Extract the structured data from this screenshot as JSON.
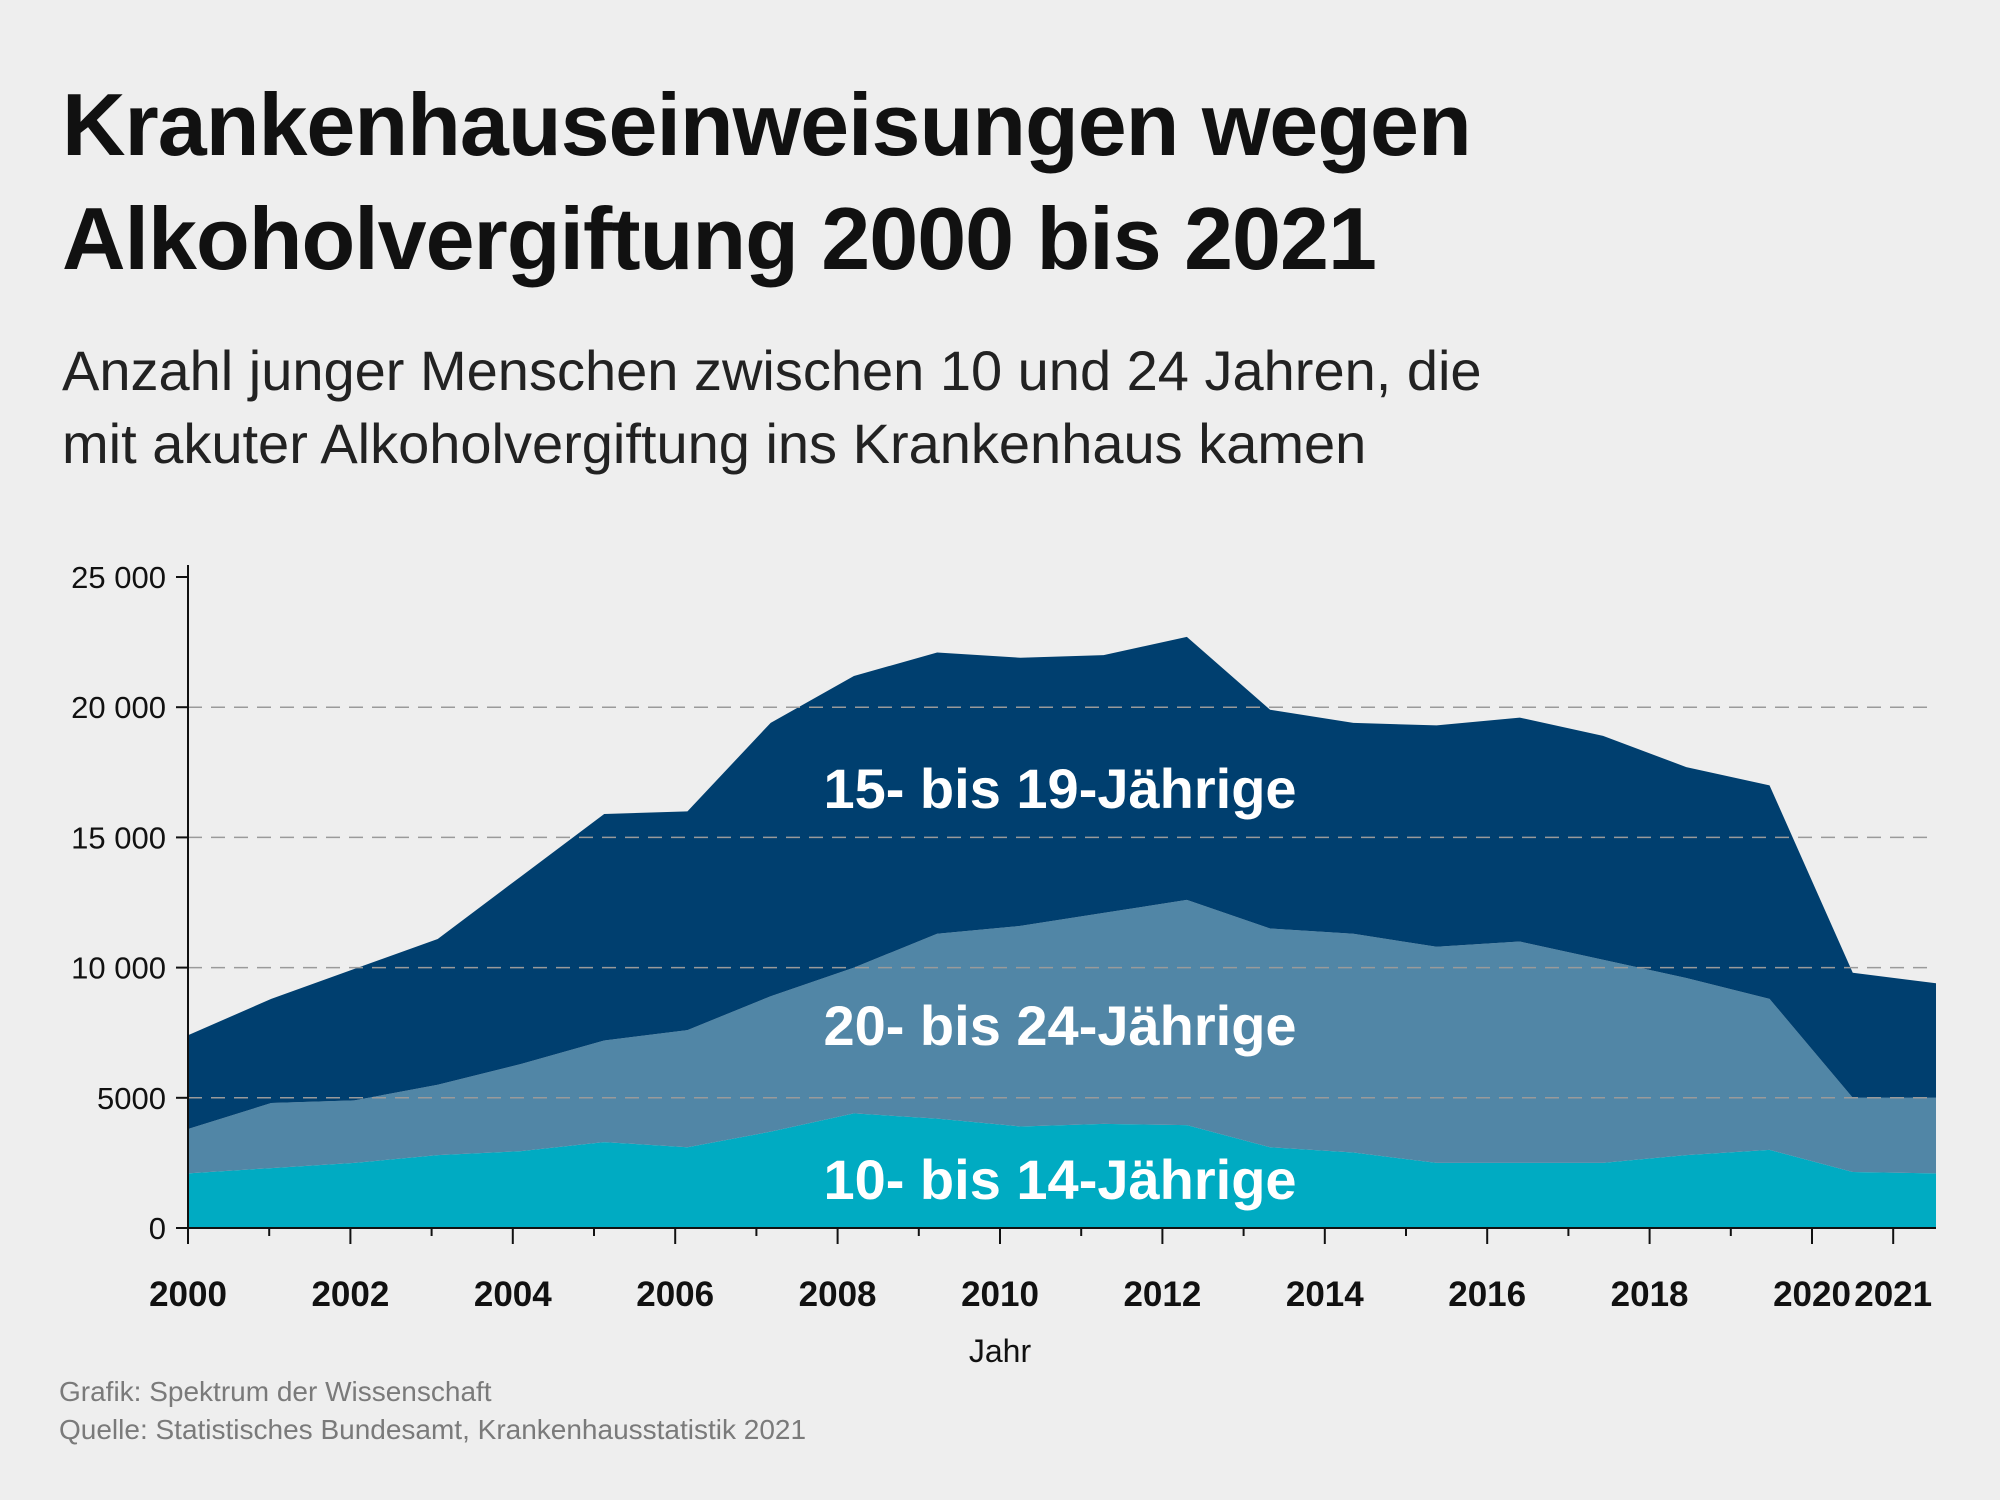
{
  "title_lines": [
    "Krankenhauseinweisungen wegen",
    "Alkoholvergiftung 2000 bis 2021"
  ],
  "subtitle_lines": [
    "Anzahl junger Menschen zwischen 10 und 24 Jahren, die",
    "mit akuter Alkoholvergiftung ins Krankenhaus kamen"
  ],
  "footer": {
    "credit": "Grafik: Spektrum der Wissenschaft",
    "source": "Quelle: Statistisches Bundesamt, Krankenhausstatistik 2021"
  },
  "chart_data": {
    "type": "area",
    "stacked": true,
    "title": "Krankenhauseinweisungen wegen Alkoholvergiftung 2000 bis 2021",
    "xlabel": "Jahr",
    "ylabel": "",
    "ylim": [
      0,
      25000
    ],
    "grid": "horizontal dashed",
    "legend": "inline labels",
    "x": [
      2000,
      2001,
      2002,
      2003,
      2004,
      2005,
      2006,
      2007,
      2008,
      2009,
      2010,
      2011,
      2012,
      2013,
      2014,
      2015,
      2016,
      2017,
      2018,
      2019,
      2020,
      2021
    ],
    "x_tick_labels": [
      "2000",
      "2002",
      "2004",
      "2006",
      "2008",
      "2010",
      "2012",
      "2014",
      "2016",
      "2018",
      "2020",
      "2021"
    ],
    "y_ticks": [
      0,
      5000,
      10000,
      15000,
      20000,
      25000
    ],
    "y_tick_labels": [
      "0",
      "5000",
      "10 000",
      "15 000",
      "20 000",
      "25 000"
    ],
    "series": [
      {
        "name": "10- bis 14-Jährige",
        "color": "#00abc2",
        "values": [
          2100,
          2300,
          2500,
          2800,
          2950,
          3300,
          3100,
          3700,
          4400,
          4200,
          3900,
          4000,
          3950,
          3100,
          2900,
          2500,
          2500,
          2500,
          2800,
          3000,
          2150,
          2100
        ]
      },
      {
        "name": "20- bis 24-Jährige",
        "color": "#5186a6",
        "values": [
          1700,
          2500,
          2400,
          2700,
          3350,
          3900,
          4500,
          5200,
          5600,
          7100,
          7700,
          8100,
          8650,
          8400,
          8400,
          8300,
          8500,
          7800,
          6800,
          5800,
          2850,
          2900
        ]
      },
      {
        "name": "15- bis 19-Jährige",
        "color": "#003f6f",
        "values": [
          3600,
          4000,
          5050,
          5600,
          7200,
          8700,
          8400,
          10500,
          11200,
          10800,
          10300,
          9900,
          10100,
          8400,
          8100,
          8500,
          8600,
          8600,
          8100,
          8200,
          4800,
          4400
        ]
      }
    ]
  }
}
